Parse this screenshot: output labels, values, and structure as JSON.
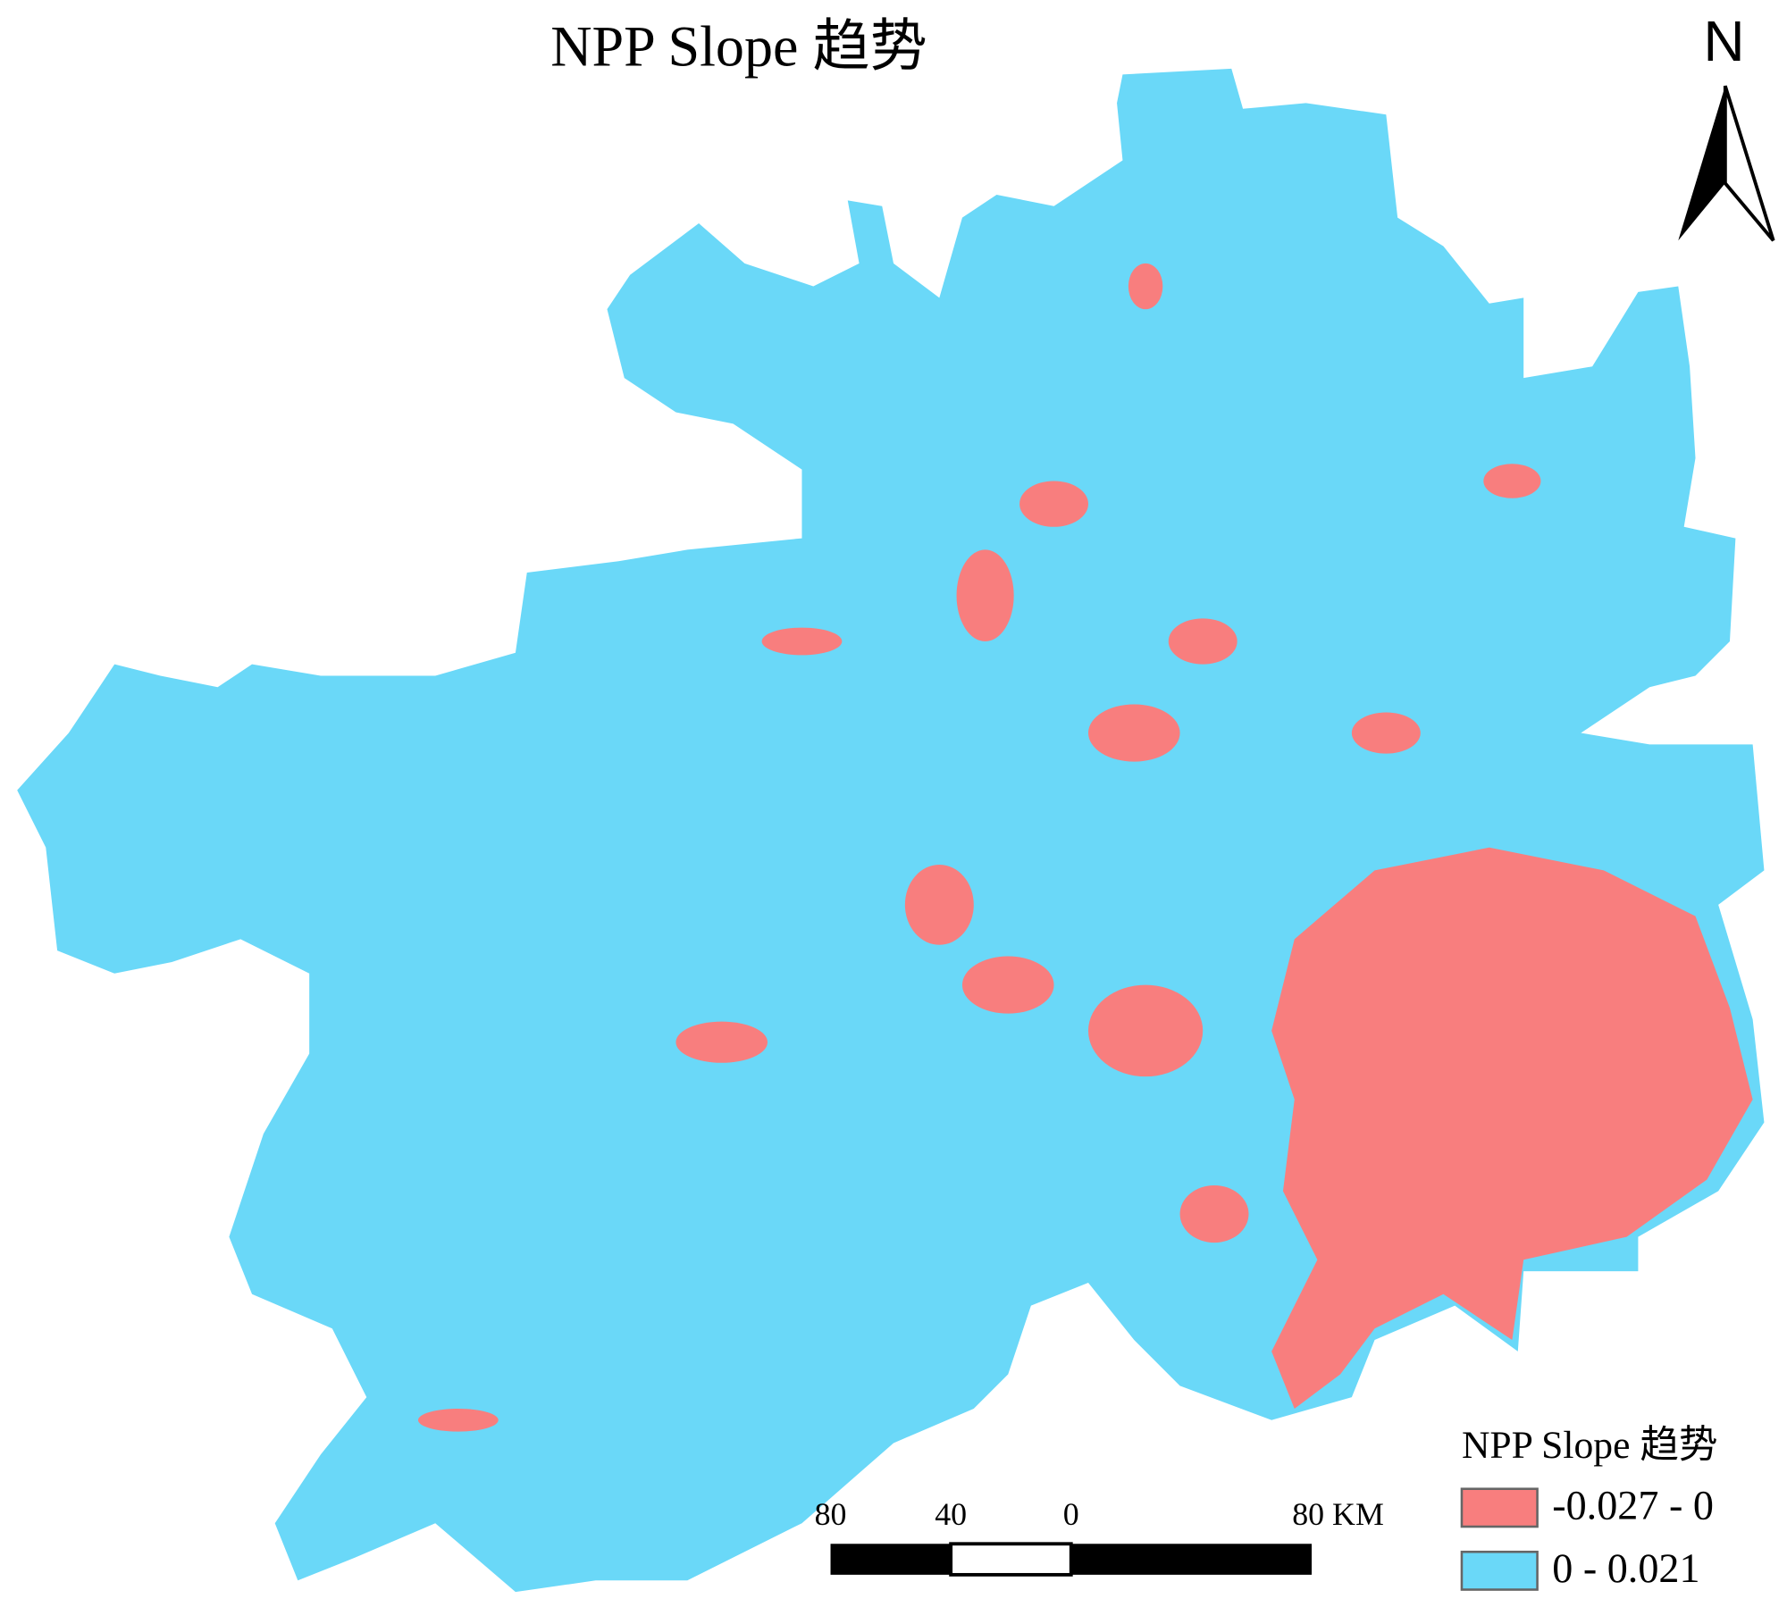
{
  "title": "NPP Slope 趋势",
  "north_arrow": {
    "label": "N"
  },
  "scale_bar": {
    "labels": [
      "80",
      "40",
      "0",
      "80 KM"
    ]
  },
  "legend": {
    "title": "NPP Slope 趋势",
    "items": [
      {
        "label": "-0.027 - 0",
        "color": "#f87e7e"
      },
      {
        "label": "0 - 0.021",
        "color": "#6ad8f8"
      }
    ]
  }
}
